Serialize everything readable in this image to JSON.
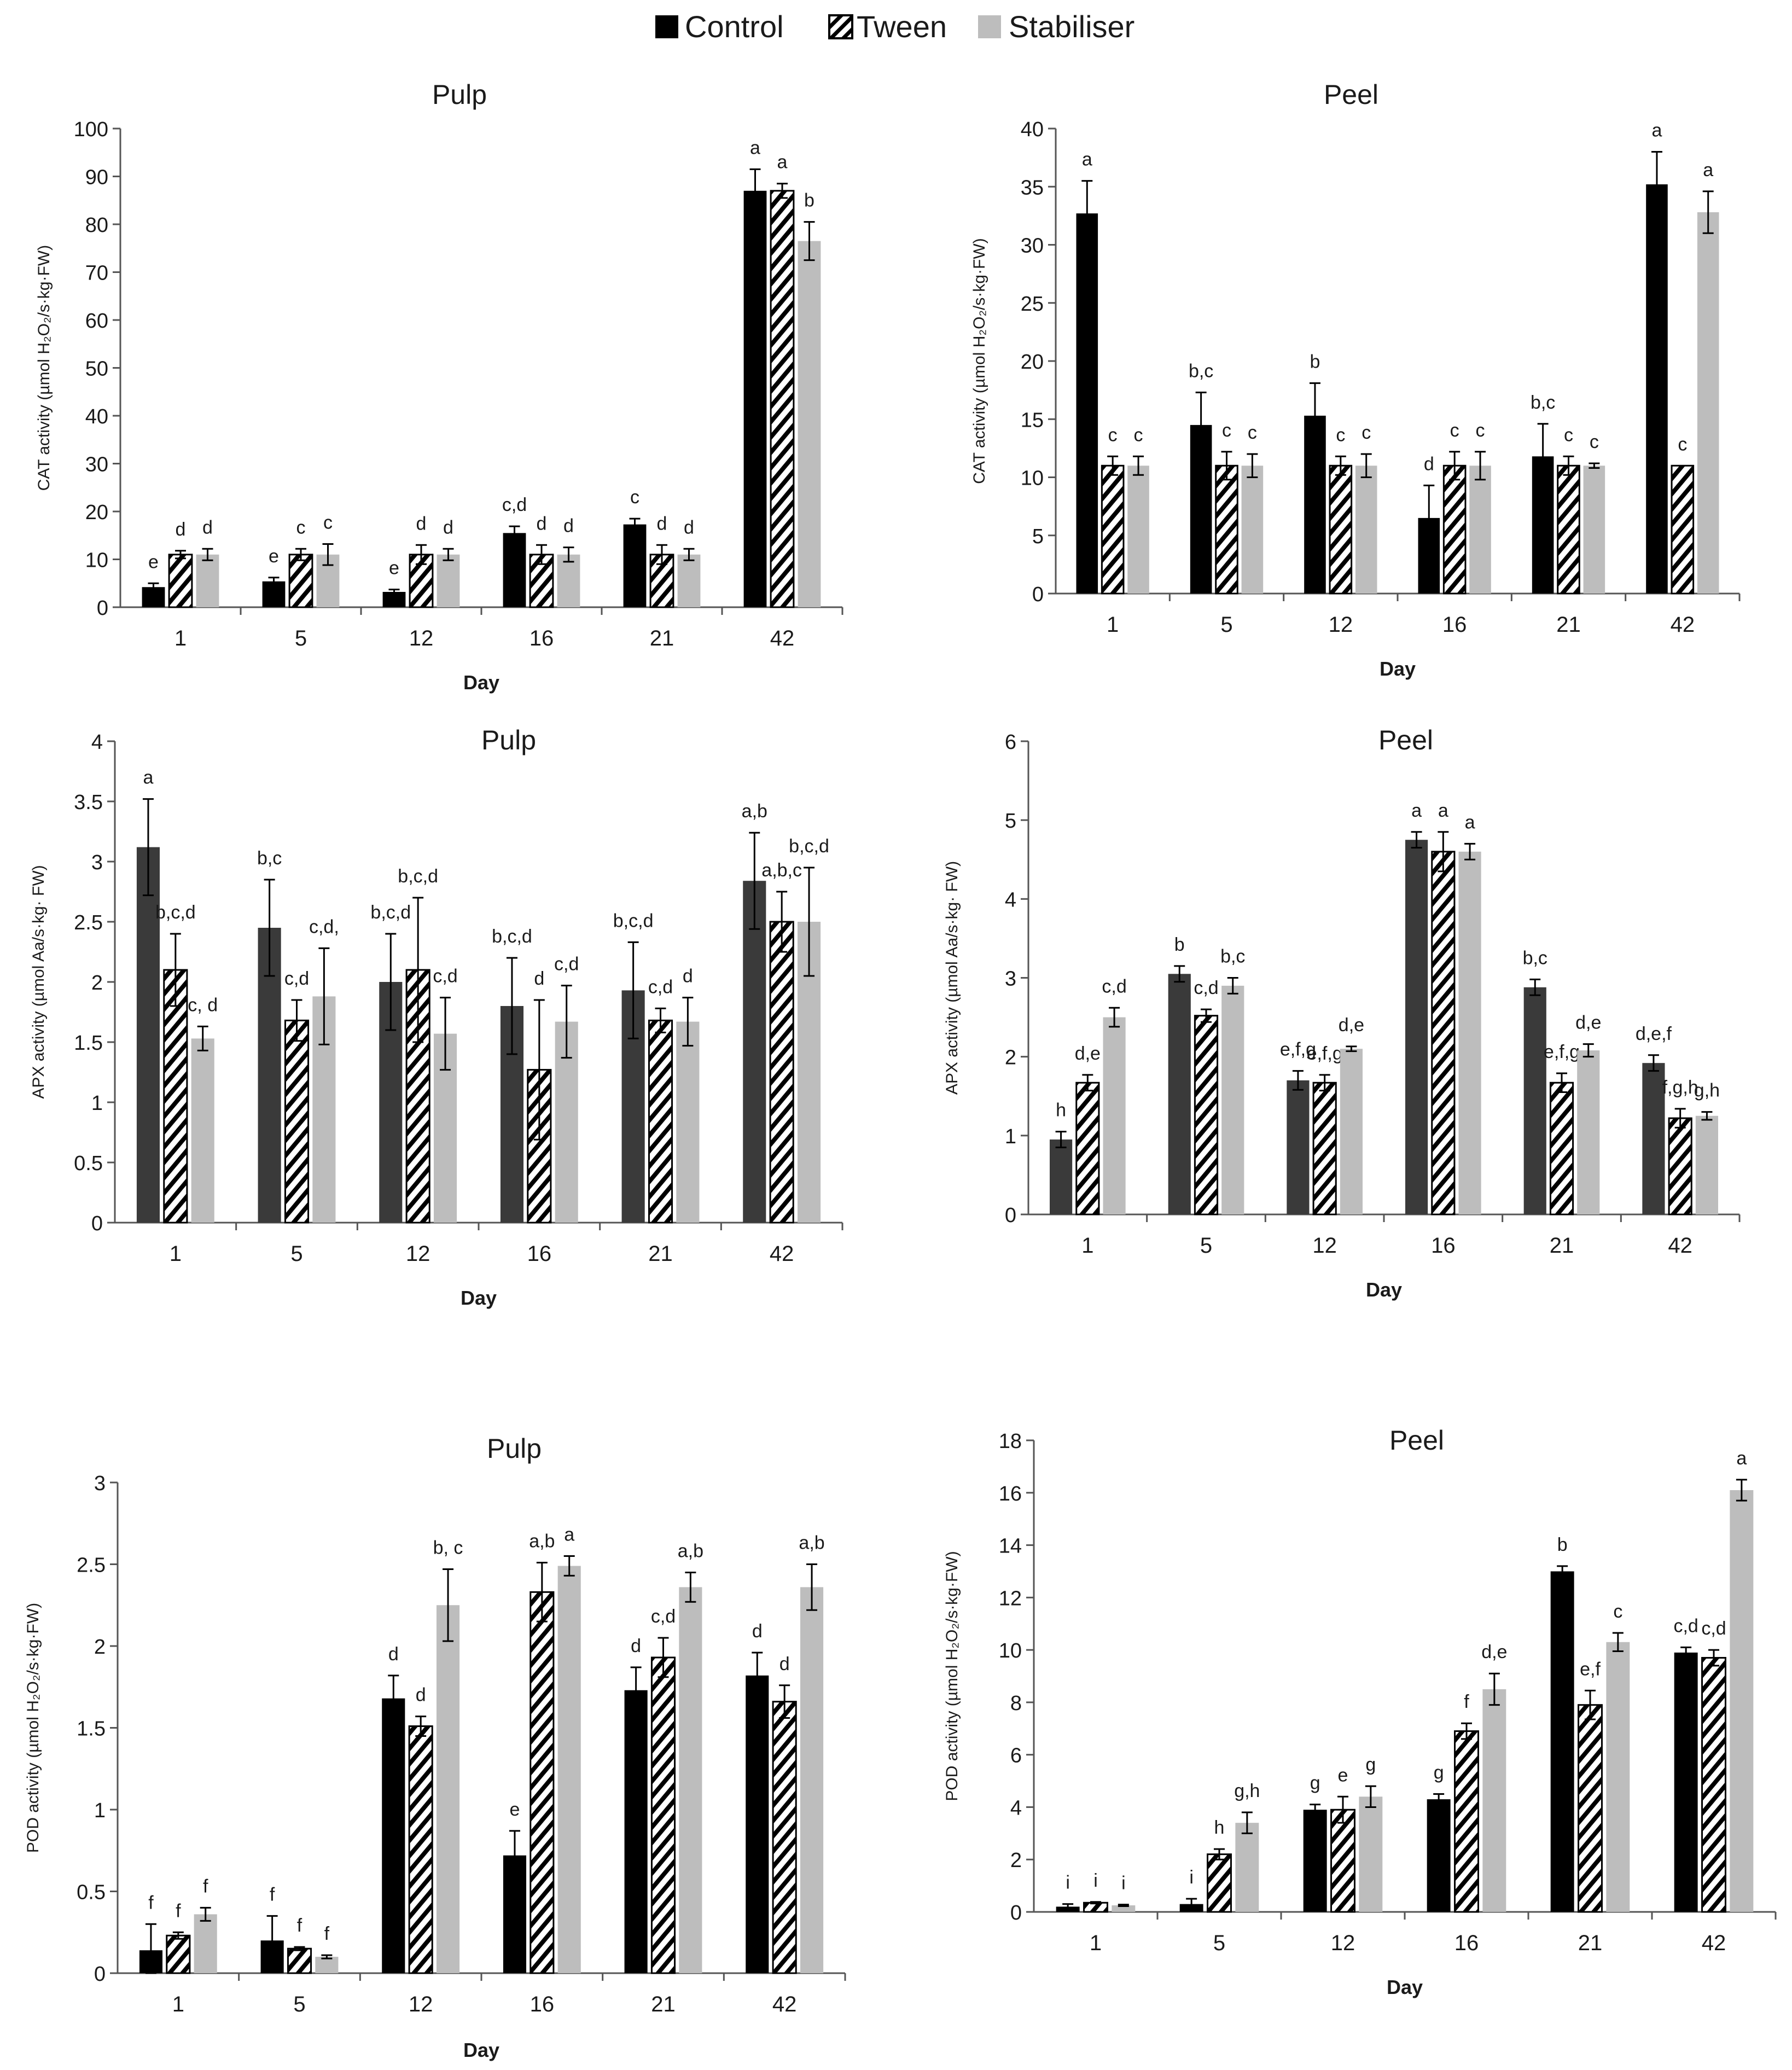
{
  "legend": [
    {
      "name": "Control",
      "fill": "#000000",
      "pattern": "solid"
    },
    {
      "name": "Tween",
      "fill": "#ffffff",
      "pattern": "hatch"
    },
    {
      "name": "Stabiliser",
      "fill": "#bdbdbd",
      "pattern": "solid"
    }
  ],
  "chart_data": [
    {
      "type": "bar",
      "id": "cat-pulp",
      "title": "Pulp",
      "xlabel": "Day",
      "ylabel": "CAT activity (µmol H₂O₂/s·kg·FW)",
      "categories": [
        "1",
        "5",
        "12",
        "16",
        "21",
        "42"
      ],
      "ylim": [
        0,
        100
      ],
      "ystep": 10,
      "control_color": "#000000",
      "series": [
        {
          "name": "Control",
          "values": [
            4.2,
            5.4,
            3.2,
            15.5,
            17.3,
            87.0
          ],
          "errors": [
            0.8,
            0.8,
            0.5,
            1.4,
            1.2,
            4.5
          ],
          "letters": [
            "e",
            "e",
            "e",
            "c,d",
            "c",
            "a"
          ]
        },
        {
          "name": "Tween",
          "values": [
            11.0,
            11.0,
            11.0,
            11.0,
            11.0,
            87.0
          ],
          "errors": [
            0.8,
            1.2,
            2.0,
            2.0,
            2.0,
            1.5
          ],
          "letters": [
            "d",
            "c",
            "d",
            "d",
            "d",
            "a"
          ]
        },
        {
          "name": "Stabiliser",
          "values": [
            11.0,
            11.0,
            11.0,
            11.0,
            11.0,
            76.5
          ],
          "errors": [
            1.2,
            2.2,
            1.2,
            1.5,
            1.2,
            4.0
          ],
          "letters": [
            "d",
            "c",
            "d",
            "d",
            "d",
            "b"
          ]
        }
      ]
    },
    {
      "type": "bar",
      "id": "cat-peel",
      "title": "Peel",
      "xlabel": "Day",
      "ylabel": "CAT activity (µmol H₂O₂/s·kg·FW)",
      "categories": [
        "1",
        "5",
        "12",
        "16",
        "21",
        "42"
      ],
      "ylim": [
        0,
        40
      ],
      "ystep": 5,
      "control_color": "#000000",
      "series": [
        {
          "name": "Control",
          "values": [
            32.7,
            14.5,
            15.3,
            6.5,
            11.8,
            35.2
          ],
          "errors": [
            2.8,
            2.8,
            2.8,
            2.8,
            2.8,
            2.8
          ],
          "letters": [
            "a",
            "b,c",
            "b",
            "d",
            "b,c",
            "a"
          ]
        },
        {
          "name": "Tween",
          "values": [
            11.0,
            11.0,
            11.0,
            11.0,
            11.0,
            11.0
          ],
          "errors": [
            0.8,
            1.2,
            0.8,
            1.2,
            0.8,
            0.0
          ],
          "letters": [
            "c",
            "c",
            "c",
            "c",
            "c",
            "c"
          ]
        },
        {
          "name": "Stabiliser",
          "values": [
            11.0,
            11.0,
            11.0,
            11.0,
            11.0,
            32.8
          ],
          "errors": [
            0.8,
            1.0,
            1.0,
            1.2,
            0.2,
            1.8
          ],
          "letters": [
            "c",
            "c",
            "c",
            "c",
            "c",
            "a"
          ]
        }
      ]
    },
    {
      "type": "bar",
      "id": "apx-pulp",
      "title": "Pulp",
      "xlabel": "Day",
      "ylabel": "APX activity (µmol Aa/s·kg· FW)",
      "categories": [
        "1",
        "5",
        "12",
        "16",
        "21",
        "42"
      ],
      "ylim": [
        0,
        4
      ],
      "ystep": 0.5,
      "control_color": "#3a3a3a",
      "series": [
        {
          "name": "Control",
          "values": [
            3.12,
            2.45,
            2.0,
            1.8,
            1.93,
            2.84
          ],
          "errors": [
            0.4,
            0.4,
            0.4,
            0.4,
            0.4,
            0.4
          ],
          "letters": [
            "a",
            "b,c",
            "b,c,d",
            "b,c,d",
            "b,c,d",
            "a,b"
          ]
        },
        {
          "name": "Tween",
          "values": [
            2.1,
            1.68,
            2.1,
            1.27,
            1.68,
            2.5
          ],
          "errors": [
            0.3,
            0.17,
            0.6,
            0.58,
            0.1,
            0.25
          ],
          "letters": [
            "b,c,d",
            "c,d",
            "b,c,d",
            "d",
            "c,d",
            "a,b,c"
          ]
        },
        {
          "name": "Stabiliser",
          "values": [
            1.53,
            1.88,
            1.57,
            1.67,
            1.67,
            2.5
          ],
          "errors": [
            0.1,
            0.4,
            0.3,
            0.3,
            0.2,
            0.45
          ],
          "letters": [
            "c, d",
            "c,d,",
            "c,d",
            "c,d",
            "d",
            "b,c,d"
          ]
        }
      ]
    },
    {
      "type": "bar",
      "id": "apx-peel",
      "title": "Peel",
      "xlabel": "Day",
      "ylabel": "APX activity (µmol Aa/s·kg· FW)",
      "categories": [
        "1",
        "5",
        "12",
        "16",
        "21",
        "42"
      ],
      "ylim": [
        0,
        6
      ],
      "ystep": 1,
      "control_color": "#3a3a3a",
      "series": [
        {
          "name": "Control",
          "values": [
            0.95,
            3.05,
            1.7,
            4.75,
            2.88,
            1.92
          ],
          "errors": [
            0.1,
            0.1,
            0.12,
            0.1,
            0.1,
            0.1
          ],
          "letters": [
            "h",
            "b",
            "e,f,g",
            "a",
            "b,c",
            "d,e,f"
          ]
        },
        {
          "name": "Tween",
          "values": [
            1.67,
            2.52,
            1.67,
            4.6,
            1.67,
            1.22
          ],
          "errors": [
            0.1,
            0.08,
            0.1,
            0.25,
            0.12,
            0.12
          ],
          "letters": [
            "d,e",
            "c,d",
            "e,f,g",
            "a",
            "e,f,g",
            "f,g,h"
          ]
        },
        {
          "name": "Stabiliser",
          "values": [
            2.5,
            2.9,
            2.1,
            4.6,
            2.08,
            1.25
          ],
          "errors": [
            0.12,
            0.1,
            0.03,
            0.1,
            0.08,
            0.05
          ],
          "letters": [
            "c,d",
            "b,c",
            "d,e",
            "a",
            "d,e",
            "g,h"
          ]
        }
      ]
    },
    {
      "type": "bar",
      "id": "pod-pulp",
      "title": "Pulp",
      "xlabel": "Day",
      "ylabel": "POD activity (µmol H₂O₂/s·kg·FW)",
      "categories": [
        "1",
        "5",
        "12",
        "16",
        "21",
        "42"
      ],
      "ylim": [
        0,
        3
      ],
      "ystep": 0.5,
      "control_color": "#000000",
      "series": [
        {
          "name": "Control",
          "values": [
            0.14,
            0.2,
            1.68,
            0.72,
            1.73,
            1.82
          ],
          "errors": [
            0.16,
            0.15,
            0.14,
            0.15,
            0.14,
            0.14
          ],
          "letters": [
            "f",
            "f",
            "d",
            "e",
            "d",
            "d"
          ]
        },
        {
          "name": "Tween",
          "values": [
            0.23,
            0.15,
            1.51,
            2.33,
            1.93,
            1.66
          ],
          "errors": [
            0.02,
            0.01,
            0.06,
            0.18,
            0.12,
            0.1
          ],
          "letters": [
            "f",
            "f",
            "d",
            "a,b",
            "c,d",
            "d"
          ]
        },
        {
          "name": "Stabiliser",
          "values": [
            0.36,
            0.1,
            2.25,
            2.49,
            2.36,
            2.36
          ],
          "errors": [
            0.04,
            0.01,
            0.22,
            0.06,
            0.09,
            0.14
          ],
          "letters": [
            "f",
            "f",
            "b, c",
            "a",
            "a,b",
            "a,b"
          ]
        }
      ]
    },
    {
      "type": "bar",
      "id": "pod-peel",
      "title": "Peel",
      "xlabel": "Day",
      "ylabel": "POD activity (µmol H₂O₂/s·kg·FW)",
      "categories": [
        "1",
        "5",
        "12",
        "16",
        "21",
        "42"
      ],
      "ylim": [
        0,
        18
      ],
      "ystep": 2,
      "control_color": "#000000",
      "series": [
        {
          "name": "Control",
          "values": [
            0.2,
            0.3,
            3.9,
            4.3,
            13.0,
            9.9
          ],
          "errors": [
            0.1,
            0.2,
            0.2,
            0.2,
            0.2,
            0.2
          ],
          "letters": [
            "i",
            "i",
            "g",
            "g",
            "b",
            "c,d"
          ]
        },
        {
          "name": "Tween",
          "values": [
            0.35,
            2.2,
            3.9,
            6.9,
            7.9,
            9.7
          ],
          "errors": [
            0.03,
            0.2,
            0.5,
            0.3,
            0.55,
            0.3
          ],
          "letters": [
            "i",
            "h",
            "e",
            "f",
            "e,f",
            "c,d"
          ]
        },
        {
          "name": "Stabiliser",
          "values": [
            0.25,
            3.4,
            4.4,
            8.5,
            10.3,
            16.1
          ],
          "errors": [
            0.03,
            0.4,
            0.4,
            0.6,
            0.35,
            0.4
          ],
          "letters": [
            "i",
            "g,h",
            "g",
            "d,e",
            "c",
            "a"
          ]
        }
      ]
    }
  ]
}
